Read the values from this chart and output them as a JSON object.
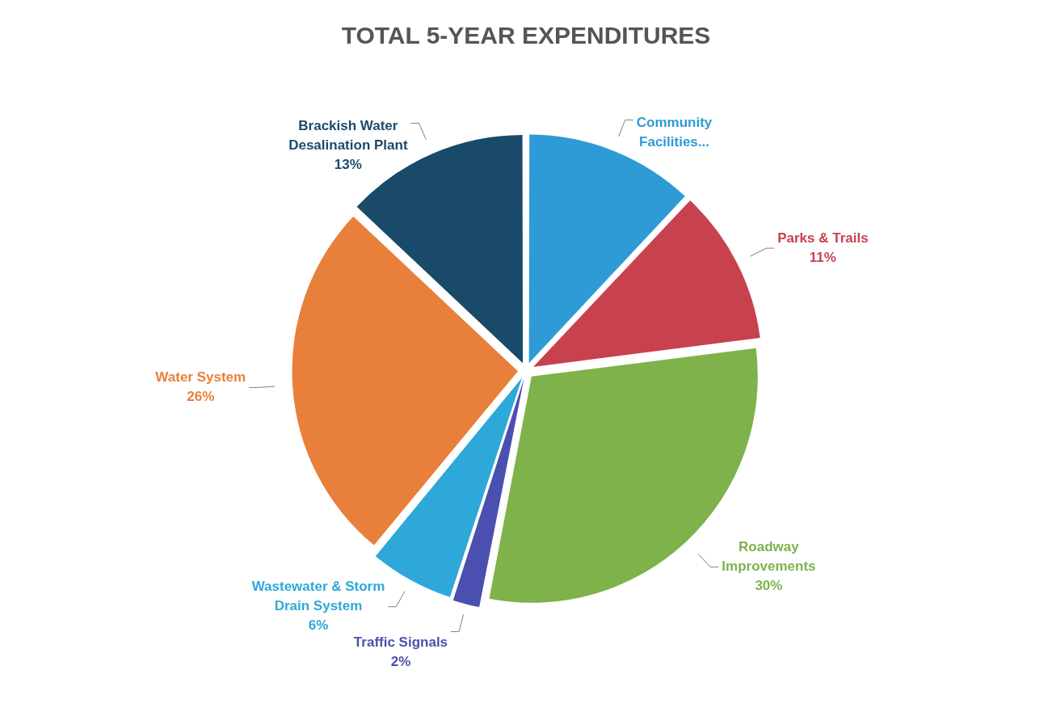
{
  "chart_data": {
    "type": "pie",
    "title": "TOTAL 5-YEAR EXPENDITURES",
    "categories": [
      "Community Facilities...",
      "Parks & Trails",
      "Roadway Improvements",
      "Traffic Signals",
      "Wastewater & Storm Drain System",
      "Water System",
      "Brackish Water Desalination Plant"
    ],
    "values": [
      12,
      11,
      30,
      2,
      6,
      26,
      13
    ],
    "value_labels": [
      null,
      "11%",
      "30%",
      "2%",
      "6%",
      "26%",
      "13%"
    ],
    "colors": [
      "#2e9bd6",
      "#c8414f",
      "#7fb24a",
      "#4a4fb0",
      "#2ea8d8",
      "#e8803c",
      "#1a4a6a"
    ],
    "legend": false
  }
}
